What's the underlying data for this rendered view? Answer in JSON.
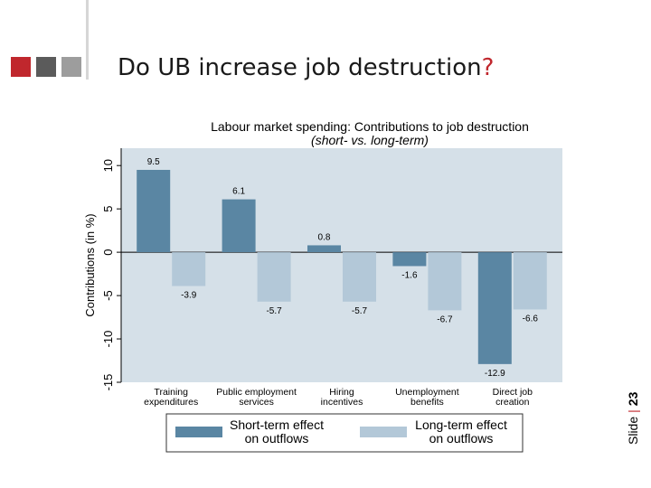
{
  "slide": {
    "title_main": "Do UB increase job destruction",
    "title_mark": "?",
    "label": "Slide",
    "separator": "|",
    "number": "23",
    "logo_colors": [
      "#c0272d",
      "#5b5b5b",
      "#9d9d9d"
    ]
  },
  "chart_data": {
    "type": "bar",
    "title": "Labour market spending: Contributions to job destruction",
    "subtitle": "(short- vs. long-term)",
    "xlabel": "",
    "ylabel": "Contributions (in %)",
    "ylim": [
      -15,
      12
    ],
    "yticks": [
      -15,
      -10,
      -5,
      0,
      5,
      10
    ],
    "grid": false,
    "legend_position": "bottom",
    "categories": [
      [
        "Training",
        "expenditures"
      ],
      [
        "Public employment",
        "services"
      ],
      [
        "Hiring",
        "incentives"
      ],
      [
        "Unemployment",
        "benefits"
      ],
      [
        "Direct job",
        "creation"
      ]
    ],
    "series": [
      {
        "name": [
          "Short-term effect",
          "on outflows"
        ],
        "color": "#5a86a3",
        "values": [
          9.5,
          6.1,
          0.8,
          -1.6,
          -12.9
        ]
      },
      {
        "name": [
          "Long-term effect",
          "on outflows"
        ],
        "color": "#b3c8d8",
        "values": [
          -3.9,
          -5.7,
          -5.7,
          -6.7,
          -6.6
        ]
      }
    ],
    "data_labels": [
      [
        "9.5",
        "6.1",
        "0.8",
        "-1.6",
        "-12.9"
      ],
      [
        "-3.9",
        "-5.7",
        "-5.7",
        "-6.7",
        "-6.6"
      ]
    ],
    "plot_background": "#d5e0e8"
  }
}
